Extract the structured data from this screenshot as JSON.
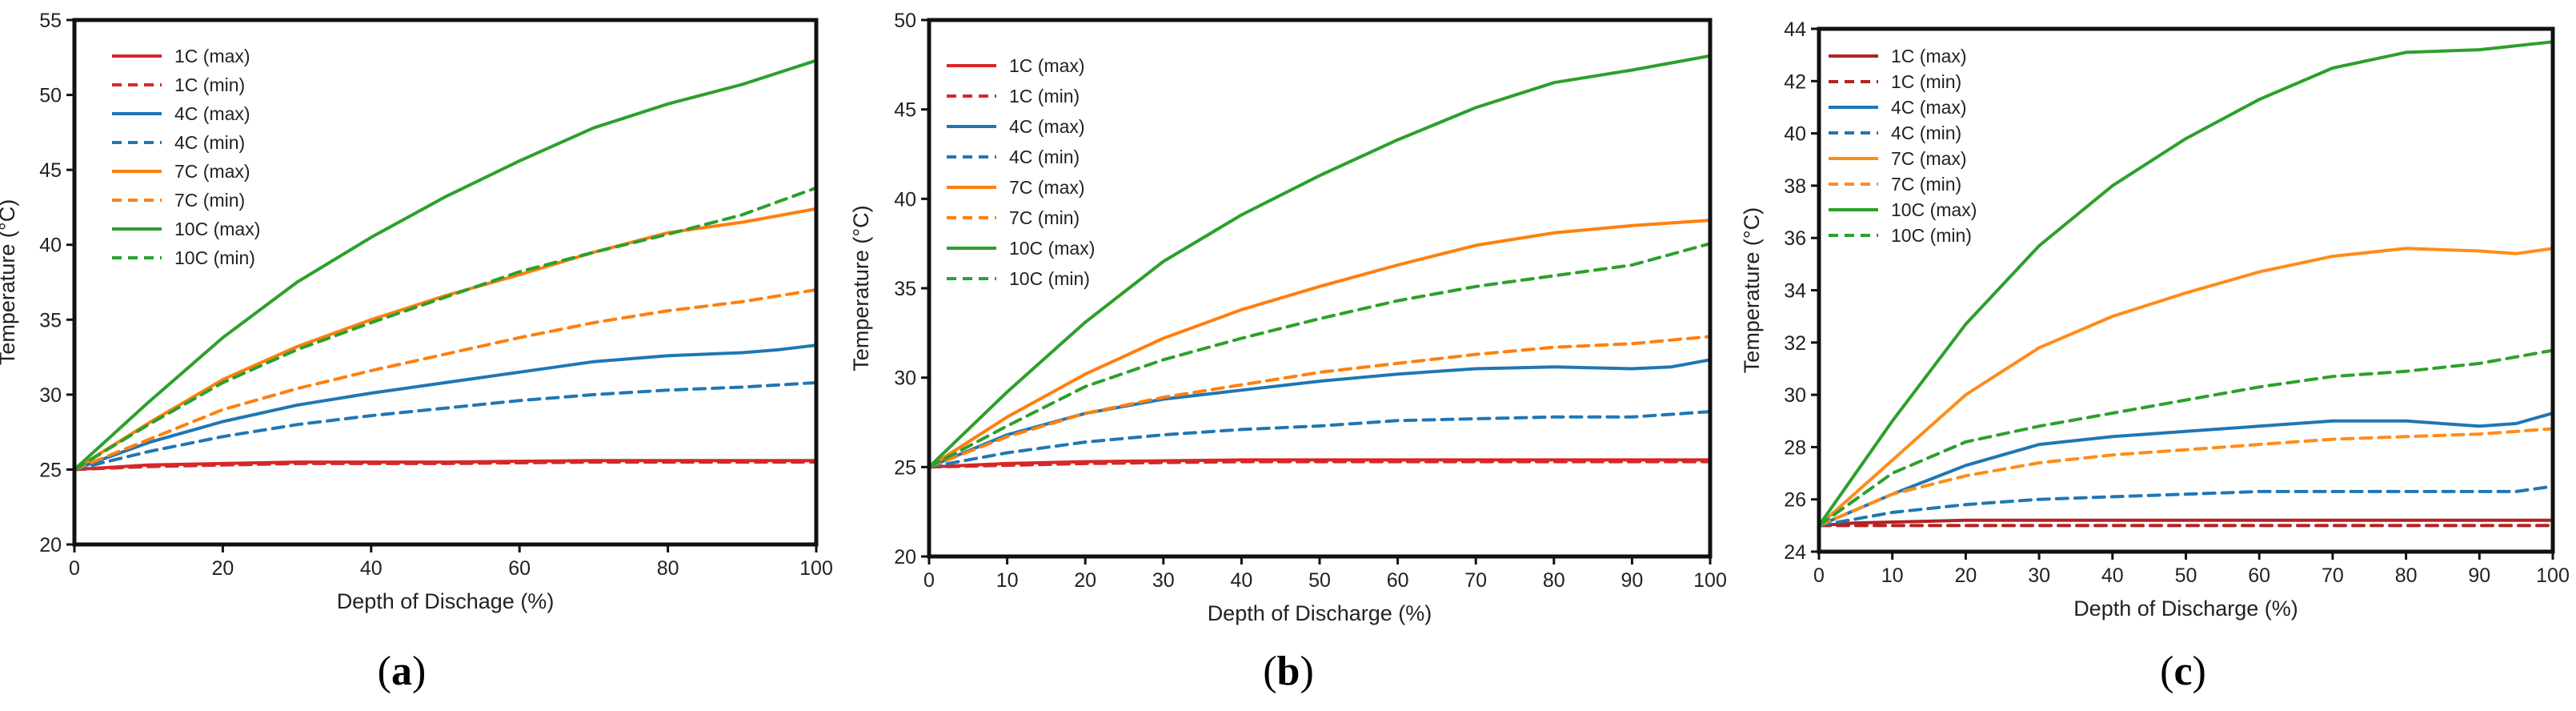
{
  "chart_data": [
    {
      "type": "line",
      "panel_label": "a",
      "xlabel": "Depth of Dischage (%)",
      "ylabel": "Temperature (°C)",
      "xlim": [
        0,
        100
      ],
      "ylim": [
        20,
        55
      ],
      "xticks": [
        0,
        20,
        40,
        60,
        80,
        100
      ],
      "yticks": [
        20,
        25,
        30,
        35,
        40,
        45,
        50,
        55
      ],
      "grid": false,
      "legend_position": "top-left",
      "series": [
        {
          "name": "1C (max)",
          "color": "#d62728",
          "style": "solid",
          "x": [
            0,
            10,
            20,
            30,
            50,
            70,
            100
          ],
          "y": [
            25,
            25.3,
            25.4,
            25.5,
            25.5,
            25.6,
            25.6
          ]
        },
        {
          "name": "1C (min)",
          "color": "#d62728",
          "style": "dashed",
          "x": [
            0,
            10,
            20,
            30,
            50,
            70,
            100
          ],
          "y": [
            25,
            25.2,
            25.3,
            25.4,
            25.4,
            25.5,
            25.5
          ]
        },
        {
          "name": "4C (max)",
          "color": "#1f77b4",
          "style": "solid",
          "x": [
            0,
            10,
            20,
            30,
            40,
            50,
            60,
            70,
            80,
            90,
            95,
            100
          ],
          "y": [
            25,
            26.8,
            28.2,
            29.3,
            30.1,
            30.8,
            31.5,
            32.2,
            32.6,
            32.8,
            33.0,
            33.3
          ]
        },
        {
          "name": "4C (min)",
          "color": "#1f77b4",
          "style": "dashed",
          "x": [
            0,
            10,
            20,
            30,
            40,
            50,
            60,
            70,
            80,
            90,
            100
          ],
          "y": [
            25,
            26.2,
            27.2,
            28.0,
            28.6,
            29.1,
            29.6,
            30.0,
            30.3,
            30.5,
            30.8
          ]
        },
        {
          "name": "7C (max)",
          "color": "#ff7f0e",
          "style": "solid",
          "x": [
            0,
            10,
            20,
            30,
            40,
            50,
            60,
            70,
            80,
            90,
            100
          ],
          "y": [
            25,
            28.1,
            31.0,
            33.2,
            35.0,
            36.6,
            38.0,
            39.5,
            40.8,
            41.5,
            42.4
          ]
        },
        {
          "name": "7C (min)",
          "color": "#ff7f0e",
          "style": "dashed",
          "x": [
            0,
            10,
            20,
            30,
            40,
            50,
            60,
            70,
            80,
            90,
            100
          ],
          "y": [
            25,
            27.0,
            29.0,
            30.4,
            31.6,
            32.7,
            33.8,
            34.8,
            35.6,
            36.2,
            37.0
          ]
        },
        {
          "name": "10C (max)",
          "color": "#2ca02c",
          "style": "solid",
          "x": [
            0,
            10,
            20,
            30,
            40,
            50,
            60,
            70,
            80,
            90,
            100
          ],
          "y": [
            25,
            29.5,
            33.8,
            37.5,
            40.5,
            43.2,
            45.6,
            47.8,
            49.4,
            50.7,
            52.3
          ]
        },
        {
          "name": "10C (min)",
          "color": "#2ca02c",
          "style": "dashed",
          "x": [
            0,
            10,
            20,
            30,
            40,
            50,
            60,
            70,
            80,
            90,
            100
          ],
          "y": [
            25,
            28.0,
            30.8,
            33.0,
            34.8,
            36.5,
            38.2,
            39.5,
            40.7,
            42.0,
            43.8
          ]
        }
      ]
    },
    {
      "type": "line",
      "panel_label": "b",
      "xlabel": "Depth of Discharge (%)",
      "ylabel": "Temperature (°C)",
      "xlim": [
        0,
        100
      ],
      "ylim": [
        20,
        50
      ],
      "xticks": [
        0,
        10,
        20,
        30,
        40,
        50,
        60,
        70,
        80,
        90,
        100
      ],
      "yticks": [
        20,
        25,
        30,
        35,
        40,
        45,
        50
      ],
      "grid": false,
      "legend_position": "top-left",
      "series": [
        {
          "name": "1C (max)",
          "color": "#d62728",
          "style": "solid",
          "x": [
            0,
            10,
            20,
            40,
            70,
            100
          ],
          "y": [
            25,
            25.2,
            25.3,
            25.4,
            25.4,
            25.4
          ]
        },
        {
          "name": "1C (min)",
          "color": "#d62728",
          "style": "dashed",
          "x": [
            0,
            10,
            20,
            40,
            70,
            100
          ],
          "y": [
            25,
            25.1,
            25.2,
            25.3,
            25.3,
            25.3
          ]
        },
        {
          "name": "4C (max)",
          "color": "#1f77b4",
          "style": "solid",
          "x": [
            0,
            10,
            20,
            30,
            40,
            50,
            60,
            70,
            80,
            90,
            95,
            100
          ],
          "y": [
            25,
            26.8,
            28.0,
            28.8,
            29.3,
            29.8,
            30.2,
            30.5,
            30.6,
            30.5,
            30.6,
            31.0
          ]
        },
        {
          "name": "4C (min)",
          "color": "#1f77b4",
          "style": "dashed",
          "x": [
            0,
            10,
            20,
            30,
            40,
            50,
            60,
            70,
            80,
            90,
            100
          ],
          "y": [
            25,
            25.8,
            26.4,
            26.8,
            27.1,
            27.3,
            27.6,
            27.7,
            27.8,
            27.8,
            28.1
          ]
        },
        {
          "name": "7C (max)",
          "color": "#ff7f0e",
          "style": "solid",
          "x": [
            0,
            10,
            20,
            30,
            40,
            50,
            60,
            70,
            80,
            90,
            100
          ],
          "y": [
            25,
            27.8,
            30.2,
            32.2,
            33.8,
            35.1,
            36.3,
            37.4,
            38.1,
            38.5,
            38.8
          ]
        },
        {
          "name": "7C (min)",
          "color": "#ff7f0e",
          "style": "dashed",
          "x": [
            0,
            10,
            20,
            30,
            40,
            50,
            60,
            70,
            80,
            90,
            100
          ],
          "y": [
            25,
            26.7,
            28.0,
            28.9,
            29.6,
            30.3,
            30.8,
            31.3,
            31.7,
            31.9,
            32.3
          ]
        },
        {
          "name": "10C (max)",
          "color": "#2ca02c",
          "style": "solid",
          "x": [
            0,
            10,
            20,
            30,
            40,
            50,
            60,
            70,
            80,
            90,
            100
          ],
          "y": [
            25,
            29.2,
            33.1,
            36.5,
            39.1,
            41.3,
            43.3,
            45.1,
            46.5,
            47.2,
            48.0
          ]
        },
        {
          "name": "10C (min)",
          "color": "#2ca02c",
          "style": "dashed",
          "x": [
            0,
            10,
            20,
            30,
            40,
            50,
            60,
            70,
            80,
            90,
            100
          ],
          "y": [
            25,
            27.3,
            29.5,
            31.0,
            32.2,
            33.3,
            34.3,
            35.1,
            35.7,
            36.3,
            37.5
          ]
        }
      ]
    },
    {
      "type": "line",
      "panel_label": "c",
      "xlabel": "Depth of Discharge (%)",
      "ylabel": "Temperature (°C)",
      "xlim": [
        0,
        100
      ],
      "ylim": [
        24,
        44
      ],
      "xticks": [
        0,
        10,
        20,
        30,
        40,
        50,
        60,
        70,
        80,
        90,
        100
      ],
      "yticks": [
        24,
        26,
        28,
        30,
        32,
        34,
        36,
        38,
        40,
        42,
        44
      ],
      "grid": false,
      "legend_position": "top-left",
      "series": [
        {
          "name": "1C (max)",
          "color": "#b22222",
          "style": "solid",
          "x": [
            0,
            5,
            20,
            50,
            100
          ],
          "y": [
            25,
            25.1,
            25.2,
            25.2,
            25.2
          ]
        },
        {
          "name": "1C (min)",
          "color": "#b22222",
          "style": "dashed",
          "x": [
            0,
            5,
            20,
            50,
            100
          ],
          "y": [
            25,
            25.0,
            25.0,
            25.0,
            25.0
          ]
        },
        {
          "name": "4C (max)",
          "color": "#1f77b4",
          "style": "solid",
          "x": [
            0,
            10,
            20,
            30,
            40,
            50,
            60,
            70,
            80,
            90,
            95,
            100
          ],
          "y": [
            25,
            26.2,
            27.3,
            28.1,
            28.4,
            28.6,
            28.8,
            29.0,
            29.0,
            28.8,
            28.9,
            29.3
          ]
        },
        {
          "name": "4C (min)",
          "color": "#1f77b4",
          "style": "dashed",
          "x": [
            0,
            10,
            20,
            30,
            40,
            50,
            60,
            70,
            80,
            90,
            95,
            100
          ],
          "y": [
            25,
            25.5,
            25.8,
            26.0,
            26.1,
            26.2,
            26.3,
            26.3,
            26.3,
            26.3,
            26.3,
            26.5
          ]
        },
        {
          "name": "7C (max)",
          "color": "#ff8c1a",
          "style": "solid",
          "x": [
            0,
            10,
            20,
            30,
            40,
            50,
            60,
            70,
            80,
            90,
            95,
            100
          ],
          "y": [
            25,
            27.5,
            30.0,
            31.8,
            33.0,
            33.9,
            34.7,
            35.3,
            35.6,
            35.5,
            35.4,
            35.6
          ]
        },
        {
          "name": "7C (min)",
          "color": "#ff8c1a",
          "style": "dashed",
          "x": [
            0,
            10,
            20,
            30,
            40,
            50,
            60,
            70,
            80,
            90,
            100
          ],
          "y": [
            25,
            26.2,
            26.9,
            27.4,
            27.7,
            27.9,
            28.1,
            28.3,
            28.4,
            28.5,
            28.7
          ]
        },
        {
          "name": "10C (max)",
          "color": "#2ca02c",
          "style": "solid",
          "x": [
            0,
            10,
            20,
            30,
            40,
            50,
            60,
            70,
            80,
            90,
            100
          ],
          "y": [
            25,
            29.0,
            32.7,
            35.7,
            38.0,
            39.8,
            41.3,
            42.5,
            43.1,
            43.2,
            43.5
          ]
        },
        {
          "name": "10C (min)",
          "color": "#2ca02c",
          "style": "dashed",
          "x": [
            0,
            10,
            20,
            30,
            40,
            50,
            60,
            70,
            80,
            90,
            100
          ],
          "y": [
            25,
            27.0,
            28.2,
            28.8,
            29.3,
            29.8,
            30.3,
            30.7,
            30.9,
            31.2,
            31.7
          ]
        }
      ]
    }
  ]
}
